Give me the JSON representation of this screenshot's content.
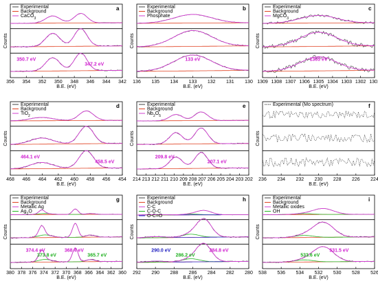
{
  "colors": {
    "experimental": "#404040",
    "background": "#e04020",
    "fit": "#d13fd1",
    "fit2": "#22b522",
    "fit3": "#2a2ad0",
    "ann_magenta": "#d020d0",
    "ann_green": "#20b020",
    "ann_blue": "#2020c0"
  },
  "ylabel": "Counts",
  "chart_data": [
    {
      "type": "line",
      "letter": "a",
      "xlabel": "B.E. (eV)",
      "xlim": [
        356,
        342
      ],
      "ticks": [
        356,
        354,
        352,
        350,
        348,
        346,
        344,
        342
      ],
      "legend": [
        "Experimental",
        "Background",
        "CaCO3"
      ],
      "peaks": [
        {
          "center": 350.7,
          "width": 0.9,
          "height": 0.75
        },
        {
          "center": 347.2,
          "width": 0.8,
          "height": 1.0
        }
      ],
      "annotations": [
        {
          "text": "350.7 eV",
          "x": 354.0,
          "color": "ann_magenta"
        },
        {
          "text": "347.2 eV",
          "x": 345.5,
          "color": "ann_magenta"
        }
      ]
    },
    {
      "type": "line",
      "letter": "b",
      "xlabel": "B.E. (eV)",
      "xlim": [
        136,
        130
      ],
      "ticks": [
        136,
        135,
        134,
        133,
        132,
        131,
        130
      ],
      "legend": [
        "Experimental",
        "Background",
        "Phosphate"
      ],
      "peaks": [
        {
          "center": 133.0,
          "width": 1.0,
          "height": 0.9
        }
      ],
      "annotations": [
        {
          "text": "133 eV",
          "x": 133.0,
          "color": "ann_magenta"
        }
      ]
    },
    {
      "type": "line",
      "letter": "c",
      "xlabel": "B.E. (eV)",
      "xlim": [
        1309,
        1301
      ],
      "ticks": [
        1309,
        1308,
        1307,
        1306,
        1305,
        1304,
        1303,
        1302,
        1301
      ],
      "legend": [
        "Experimental",
        "Background",
        "MgCO3"
      ],
      "peaks": [
        {
          "center": 1305.0,
          "width": 1.3,
          "height": 0.8
        }
      ],
      "annotations": [
        {
          "text": "1305 eV",
          "x": 1305.0,
          "color": "ann_magenta"
        }
      ]
    },
    {
      "type": "line",
      "letter": "d",
      "xlabel": "B.E. (eV)",
      "xlim": [
        468,
        454
      ],
      "ticks": [
        468,
        466,
        464,
        462,
        460,
        458,
        456,
        454
      ],
      "legend": [
        "Experimental",
        "Background",
        "TiO2"
      ],
      "peaks": [
        {
          "center": 464.1,
          "width": 1.4,
          "height": 0.35
        },
        {
          "center": 458.5,
          "width": 0.9,
          "height": 1.0
        }
      ],
      "annotations": [
        {
          "text": "464.1 eV",
          "x": 465.5,
          "color": "ann_magenta"
        },
        {
          "text": "458.5 eV",
          "x": 456.2,
          "color": "ann_magenta"
        }
      ]
    },
    {
      "type": "line",
      "letter": "e",
      "xlabel": "B.E. (eV)",
      "xlim": [
        214,
        202
      ],
      "ticks": [
        214,
        213,
        212,
        211,
        210,
        209,
        208,
        207,
        206,
        205,
        204,
        203,
        202
      ],
      "legend": [
        "Experimental",
        "Background",
        "Nb2O5"
      ],
      "peaks": [
        {
          "center": 209.8,
          "width": 0.7,
          "height": 0.65
        },
        {
          "center": 207.1,
          "width": 0.7,
          "height": 0.9
        }
      ],
      "annotations": [
        {
          "text": "209.8 eV",
          "x": 211.0,
          "color": "ann_magenta"
        },
        {
          "text": "207.1 eV",
          "x": 205.4,
          "color": "ann_magenta"
        }
      ]
    },
    {
      "type": "line",
      "letter": "f",
      "xlabel": "B.E. (eV)",
      "xlim": [
        236,
        224
      ],
      "ticks": [
        236,
        234,
        232,
        230,
        228,
        226,
        224
      ],
      "legend": [
        "Experimental (Mo spectrum)"
      ],
      "peaks": [],
      "annotations": []
    },
    {
      "type": "line",
      "letter": "g",
      "xlabel": "B.E. (eV)",
      "xlim": [
        380,
        360
      ],
      "ticks": [
        380,
        378,
        376,
        374,
        372,
        370,
        368,
        366,
        364,
        362,
        360
      ],
      "legend": [
        "Experimental",
        "Background",
        "Metallic Ag",
        "Ag2O"
      ],
      "peaks": [
        {
          "center": 374.4,
          "width": 0.5,
          "height": 0.55
        },
        {
          "center": 368.4,
          "width": 0.5,
          "height": 0.8
        },
        {
          "center": 373.8,
          "width": 1.2,
          "height": 0.15,
          "comp": "fit2"
        },
        {
          "center": 365.7,
          "width": 0.8,
          "height": 0.12,
          "comp": "fit2"
        }
      ],
      "annotations": [
        {
          "text": "374.4 eV",
          "x": 375.5,
          "color": "ann_magenta"
        },
        {
          "text": "373.8 eV",
          "x": 373.5,
          "color": "ann_green"
        },
        {
          "text": "368.4 eV",
          "x": 368.6,
          "color": "ann_magenta"
        },
        {
          "text": "365.7 eV",
          "x": 364.5,
          "color": "ann_green"
        }
      ]
    },
    {
      "type": "line",
      "letter": "h",
      "xlabel": "B.E. (eV)",
      "xlim": [
        292,
        280
      ],
      "ticks": [
        292,
        290,
        288,
        286,
        284,
        282,
        280
      ],
      "legend": [
        "Experimental",
        "Background",
        "C-C",
        "C-O-C",
        "O-C=O"
      ],
      "peaks": [
        {
          "center": 284.8,
          "width": 0.8,
          "height": 1.0
        },
        {
          "center": 286.2,
          "width": 0.9,
          "height": 0.18,
          "comp": "fit2"
        },
        {
          "center": 290.0,
          "width": 1.0,
          "height": 0.06,
          "comp": "fit3"
        }
      ],
      "annotations": [
        {
          "text": "290.0 eV",
          "x": 289.4,
          "color": "ann_blue"
        },
        {
          "text": "286.2 eV",
          "x": 286.8,
          "color": "ann_green"
        },
        {
          "text": "284.8 eV",
          "x": 283.2,
          "color": "ann_magenta"
        }
      ]
    },
    {
      "type": "line",
      "letter": "i",
      "xlabel": "B.E. (eV)",
      "xlim": [
        538,
        526
      ],
      "ticks": [
        538,
        536,
        534,
        532,
        530,
        528,
        526
      ],
      "legend": [
        "Experimental",
        "Background",
        "Metallic oxides",
        "OH"
      ],
      "peaks": [
        {
          "center": 531.5,
          "width": 1.1,
          "height": 0.85
        },
        {
          "center": 533.6,
          "width": 1.0,
          "height": 0.12,
          "comp": "fit2"
        }
      ],
      "annotations": [
        {
          "text": "531.5 eV",
          "x": 529.8,
          "color": "ann_magenta"
        },
        {
          "text": "533.6 eV",
          "x": 532.9,
          "color": "ann_green"
        }
      ]
    }
  ]
}
